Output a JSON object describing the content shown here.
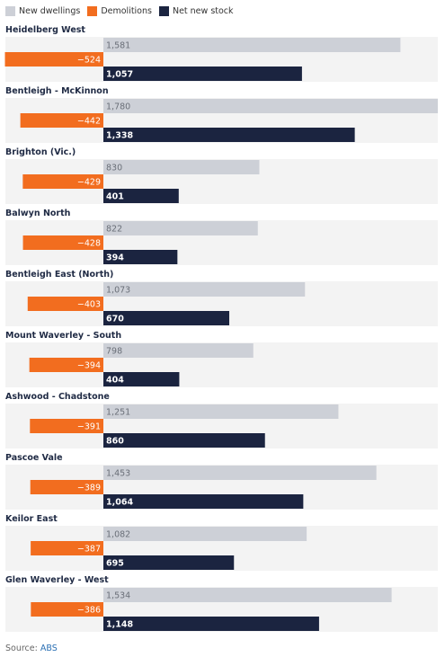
{
  "legend": [
    {
      "label": "New dwellings",
      "color": "#cdd0d7"
    },
    {
      "label": "Demolitions",
      "color": "#f26d1f"
    },
    {
      "label": "Net new stock",
      "color": "#1b2440"
    }
  ],
  "source": {
    "prefix": "Source:",
    "name": "ABS"
  },
  "chart_data": {
    "type": "bar",
    "orientation": "horizontal",
    "categories": [
      "Heidelberg West",
      "Bentleigh - McKinnon",
      "Brighton (Vic.)",
      "Balwyn North",
      "Bentleigh East (North)",
      "Mount Waverley - South",
      "Ashwood - Chadstone",
      "Pascoe Vale",
      "Keilor East",
      "Glen Waverley - West"
    ],
    "series": [
      {
        "name": "New dwellings",
        "values": [
          1581,
          1780,
          830,
          822,
          1073,
          798,
          1251,
          1453,
          1082,
          1534
        ],
        "labels": [
          "1,581",
          "1,780",
          "830",
          "822",
          "1,073",
          "798",
          "1,251",
          "1,453",
          "1,082",
          "1,534"
        ]
      },
      {
        "name": "Demolitions",
        "values": [
          -524,
          -442,
          -429,
          -428,
          -403,
          -394,
          -391,
          -389,
          -387,
          -386
        ],
        "labels": [
          "−524",
          "−442",
          "−429",
          "−428",
          "−403",
          "−394",
          "−391",
          "−389",
          "−387",
          "−386"
        ]
      },
      {
        "name": "Net new stock",
        "values": [
          1057,
          1338,
          401,
          394,
          670,
          404,
          860,
          1064,
          695,
          1148
        ],
        "labels": [
          "1,057",
          "1,338",
          "401",
          "394",
          "670",
          "404",
          "860",
          "1,064",
          "695",
          "1,148"
        ]
      }
    ],
    "xlim": [
      -525,
      1780
    ],
    "colors": {
      "new": "#cdd0d7",
      "demolitions": "#f26d1f",
      "net": "#1b2440",
      "panel": "#f3f3f3"
    }
  }
}
